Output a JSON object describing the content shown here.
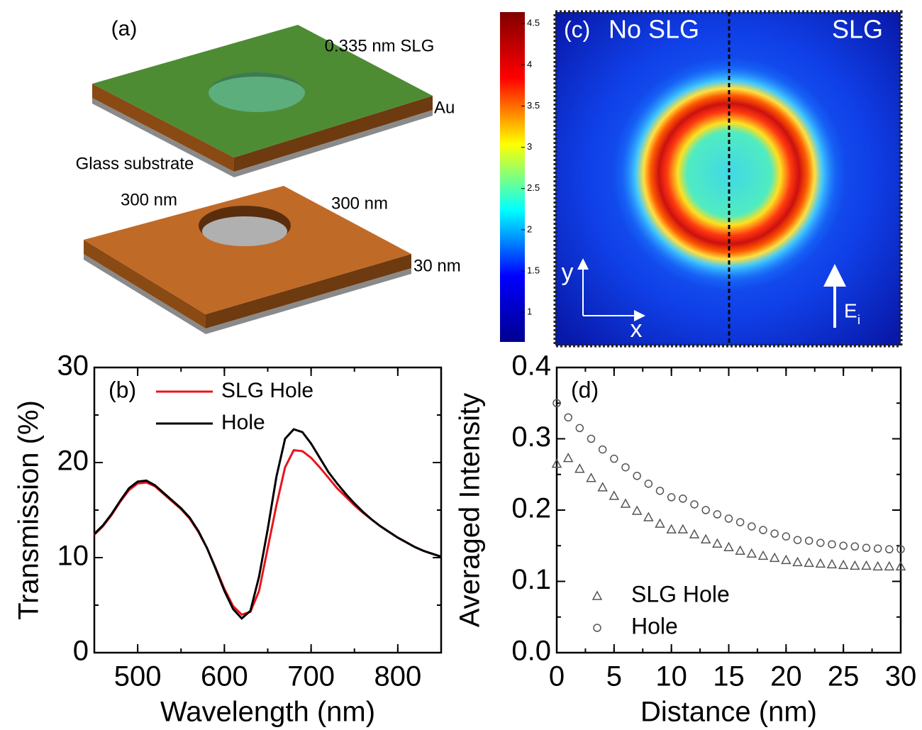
{
  "diagram": {
    "label": "(a)",
    "labels": [
      "0.335 nm SLG",
      "Au",
      "Glass substrate",
      "300 nm",
      "300 nm",
      "30 nm"
    ]
  },
  "chart_data": [
    {
      "type": "line",
      "label": "(b)",
      "x_label": "Wavelength (nm)",
      "y_label": "Transmission (%)",
      "xlim": [
        450,
        850
      ],
      "xticks": [
        500,
        600,
        700,
        800
      ],
      "ylim": [
        0,
        30
      ],
      "yticks": [
        0,
        10,
        20,
        30
      ],
      "x": [
        450,
        460,
        470,
        480,
        490,
        500,
        510,
        520,
        530,
        540,
        550,
        560,
        570,
        580,
        590,
        600,
        610,
        620,
        630,
        640,
        650,
        660,
        670,
        680,
        690,
        700,
        710,
        720,
        730,
        740,
        750,
        760,
        770,
        780,
        790,
        800,
        810,
        820,
        830,
        840,
        850
      ],
      "series": [
        {
          "name": "SLG Hole",
          "color": "#e8141c",
          "values": [
            12.4,
            13.3,
            14.5,
            15.9,
            17.1,
            17.8,
            17.9,
            17.5,
            16.7,
            15.9,
            15.1,
            14.1,
            12.7,
            11,
            8.9,
            6.7,
            4.9,
            4.0,
            4.3,
            6.5,
            11,
            15.5,
            19.5,
            21.3,
            21.2,
            20.5,
            19.5,
            18.4,
            17.3,
            16.4,
            15.5,
            14.7,
            14,
            13.3,
            12.7,
            12.1,
            11.6,
            11.1,
            10.7,
            10.4,
            10.1
          ]
        },
        {
          "name": "Hole",
          "color": "#000000",
          "values": [
            12.5,
            13.4,
            14.6,
            16,
            17.3,
            18,
            18.1,
            17.6,
            16.8,
            16,
            15.2,
            14.2,
            12.8,
            11,
            8.8,
            6.5,
            4.6,
            3.6,
            4.4,
            8,
            13,
            18.5,
            22.5,
            23.5,
            23.2,
            22,
            20.5,
            19,
            17.8,
            16.7,
            15.7,
            14.8,
            14,
            13.3,
            12.7,
            12.1,
            11.6,
            11.1,
            10.7,
            10.4,
            10.1
          ]
        }
      ]
    },
    {
      "type": "heatmap",
      "label": "(c)",
      "left_title": "No SLG",
      "right_title": "SLG",
      "y_arrow": "y",
      "x_arrow": "x",
      "field": "E",
      "field_sub": "i",
      "colormap": "jet",
      "colorbar_lim": [
        0.64,
        4.64
      ],
      "colorbar_ticks": [
        1,
        1.5,
        2,
        2.5,
        3,
        3.5,
        4,
        4.5
      ]
    },
    {
      "type": "scatter",
      "label": "(d)",
      "x_label": "Distance (nm)",
      "y_label": "Averaged Intensity",
      "xlim": [
        0,
        30
      ],
      "xticks": [
        0,
        5,
        10,
        15,
        20,
        25,
        30
      ],
      "ylim": [
        0,
        0.4
      ],
      "yticks": [
        {
          "value": 0,
          "label": "0.0"
        },
        0.1,
        0.2,
        0.3,
        0.4
      ],
      "x": [
        0,
        1,
        2,
        3,
        4,
        5,
        6,
        7,
        8,
        9,
        10,
        11,
        12,
        13,
        14,
        15,
        16,
        17,
        18,
        19,
        20,
        21,
        22,
        23,
        24,
        25,
        26,
        27,
        28,
        29,
        30
      ],
      "series": [
        {
          "name": "SLG Hole",
          "color": "#555555",
          "marker": "triangle",
          "values": [
            0.265,
            0.273,
            0.258,
            0.245,
            0.232,
            0.22,
            0.209,
            0.199,
            0.19,
            0.181,
            0.173,
            0.173,
            0.166,
            0.159,
            0.153,
            0.148,
            0.143,
            0.139,
            0.136,
            0.133,
            0.13,
            0.127,
            0.126,
            0.125,
            0.124,
            0.123,
            0.122,
            0.122,
            0.121,
            0.121,
            0.121
          ]
        },
        {
          "name": "Hole",
          "color": "#555555",
          "marker": "circle",
          "values": [
            0.35,
            0.33,
            0.315,
            0.3,
            0.285,
            0.272,
            0.26,
            0.248,
            0.237,
            0.227,
            0.218,
            0.216,
            0.208,
            0.2,
            0.194,
            0.188,
            0.183,
            0.177,
            0.172,
            0.167,
            0.163,
            0.158,
            0.157,
            0.154,
            0.152,
            0.15,
            0.149,
            0.147,
            0.146,
            0.145,
            0.145
          ]
        }
      ]
    }
  ]
}
